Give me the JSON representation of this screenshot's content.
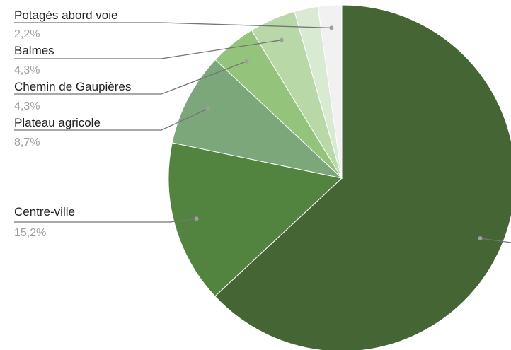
{
  "chart_data": {
    "type": "pie",
    "title": "",
    "slices": [
      {
        "label": "",
        "value": 63.0,
        "value_label": "",
        "color": "#466535"
      },
      {
        "label": "Centre-ville",
        "value": 15.2,
        "value_label": "15,2%",
        "color": "#53843f"
      },
      {
        "label": "Plateau agricole",
        "value": 8.7,
        "value_label": "8,7%",
        "color": "#7ba77b"
      },
      {
        "label": "Chemin de Gaupières",
        "value": 4.3,
        "value_label": "4,3%",
        "color": "#94c47c"
      },
      {
        "label": "Balmes",
        "value": 4.3,
        "value_label": "4,3%",
        "color": "#b8d8a8"
      },
      {
        "label": "",
        "value": 2.2,
        "value_label": "",
        "color": "#d9ead3"
      },
      {
        "label": "Potagés abord voie",
        "value": 2.2,
        "value_label": "2,2%",
        "color": "#f1f1f1"
      }
    ],
    "legend": "none",
    "leader_line_color": "#757575"
  }
}
